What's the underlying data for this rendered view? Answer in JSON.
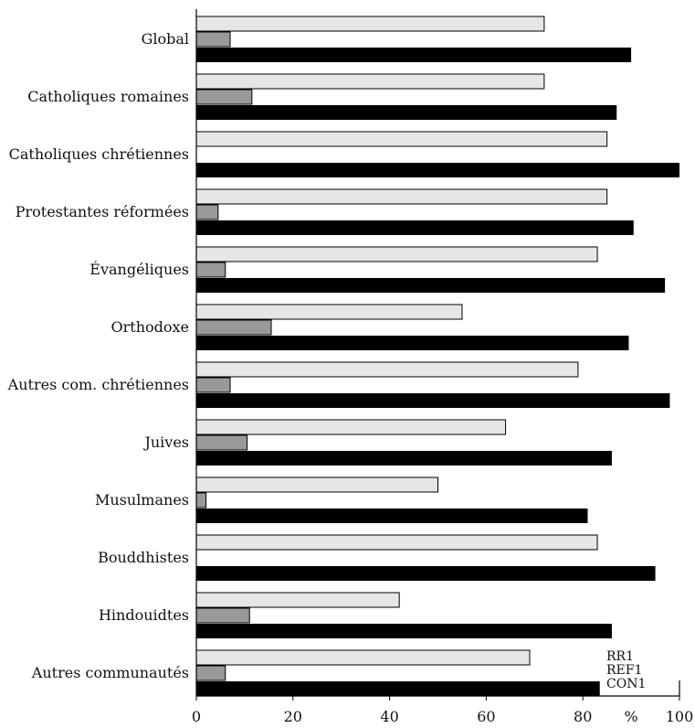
{
  "chart_data": {
    "type": "bar",
    "orientation": "horizontal",
    "categories": [
      "Global",
      "Catholiques romaines",
      "Catholiques chrétiennes",
      "Protestantes réformées",
      "Évangéliques",
      "Orthodoxe",
      "Autres com. chrétiennes",
      "Juives",
      "Musulmanes",
      "Bouddhistes",
      "Hindouidtes",
      "Autres communautés"
    ],
    "series": [
      {
        "name": "RR1",
        "color": "#e6e6e6",
        "values": [
          72,
          72,
          85,
          85,
          83,
          55,
          79,
          64,
          50,
          83,
          42,
          69
        ]
      },
      {
        "name": "REF1",
        "color": "#999999",
        "values": [
          7,
          11.5,
          0,
          4.5,
          6,
          15.5,
          7,
          10.5,
          2,
          0,
          11,
          6
        ]
      },
      {
        "name": "CON1",
        "color": "#000000",
        "values": [
          90,
          87,
          100,
          90.5,
          97,
          89.5,
          98,
          86,
          81,
          95,
          86,
          83.5
        ]
      }
    ],
    "x_ticks": [
      "0",
      "20",
      "40",
      "60",
      "80",
      "%",
      "100"
    ],
    "x_tick_values": [
      0,
      20,
      40,
      60,
      80,
      90,
      100
    ],
    "xlim": [
      0,
      100
    ],
    "grid": false,
    "legend_position": "bottom-right"
  }
}
